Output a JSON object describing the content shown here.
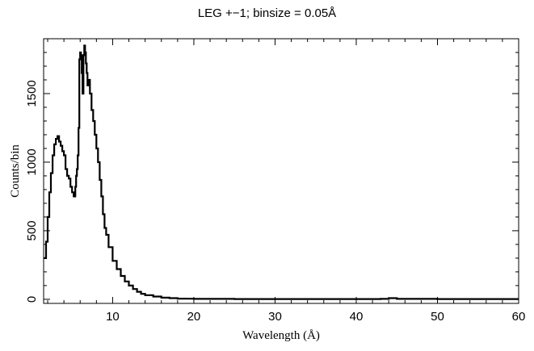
{
  "chart_data": {
    "type": "line",
    "title": "LEG +−1; binsize = 0.05Å",
    "xlabel": "Wavelength (Å)",
    "ylabel": "Counts/bin",
    "xlim": [
      1.5,
      60
    ],
    "ylim": [
      -30,
      1900
    ],
    "xticks": [
      10,
      20,
      30,
      40,
      50,
      60
    ],
    "yticks": [
      0,
      500,
      1000,
      1500
    ],
    "grid": false,
    "step": true,
    "series": [
      {
        "x": [
          1.5,
          1.8,
          2.0,
          2.2,
          2.4,
          2.6,
          2.8,
          3.0,
          3.2,
          3.4,
          3.6,
          3.8,
          4.0,
          4.2,
          4.4,
          4.6,
          4.8,
          5.0,
          5.2,
          5.4,
          5.5,
          5.6,
          5.7,
          5.8,
          5.9,
          6.0,
          6.1,
          6.2,
          6.3,
          6.4,
          6.5,
          6.6,
          6.7,
          6.8,
          6.9,
          7.0,
          7.2,
          7.4,
          7.6,
          7.8,
          8.0,
          8.2,
          8.4,
          8.6,
          8.8,
          9.0,
          9.2,
          9.5,
          10.0,
          10.5,
          11.0,
          11.5,
          12.0,
          12.5,
          13.0,
          13.5,
          14.0,
          15.0,
          16.0,
          17.0,
          18.0,
          19.0,
          20.0,
          25.0,
          30.0,
          35.0,
          40.0,
          43.0,
          44.0,
          45.0,
          50.0,
          55.0,
          60.0
        ],
        "y": [
          300,
          420,
          600,
          780,
          920,
          1050,
          1130,
          1170,
          1190,
          1150,
          1120,
          1080,
          1050,
          950,
          900,
          880,
          820,
          780,
          750,
          820,
          900,
          950,
          1050,
          1250,
          1750,
          1800,
          1780,
          1650,
          1500,
          1780,
          1850,
          1800,
          1720,
          1650,
          1560,
          1600,
          1500,
          1380,
          1300,
          1200,
          1100,
          1000,
          870,
          750,
          620,
          520,
          470,
          380,
          280,
          220,
          170,
          130,
          100,
          75,
          55,
          40,
          30,
          20,
          12,
          8,
          5,
          4,
          3,
          2,
          2,
          2,
          2,
          3,
          8,
          3,
          2,
          2,
          2
        ]
      }
    ]
  }
}
